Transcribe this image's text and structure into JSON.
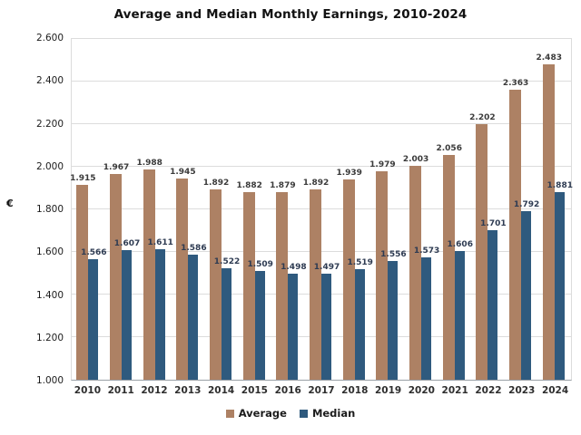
{
  "title": "Average and Median Monthly Earnings, 2010-2024",
  "y_axis_unit": "€",
  "colors": {
    "average_bar": "#ad8164",
    "median_bar": "#2f5a7e",
    "gridline": "#dcdcdc",
    "axis_line": "#9aa0a6",
    "average_label_text": "#3a3a3a",
    "median_label_text": "#2e3b52"
  },
  "legend": {
    "average_label": "Average",
    "median_label": "Median"
  },
  "chart_data": {
    "type": "bar",
    "title": "Average and Median Monthly Earnings, 2010-2024",
    "categories": [
      "2010",
      "2011",
      "2012",
      "2013",
      "2014",
      "2015",
      "2016",
      "2017",
      "2018",
      "2019",
      "2020",
      "2021",
      "2022",
      "2023",
      "2024"
    ],
    "series": [
      {
        "name": "Average",
        "color": "#ad8164",
        "values": [
          1915,
          1967,
          1988,
          1945,
          1892,
          1882,
          1879,
          1892,
          1939,
          1979,
          2003,
          2056,
          2202,
          2363,
          2483
        ],
        "labels": [
          "1.915",
          "1.967",
          "1.988",
          "1.945",
          "1.892",
          "1.882",
          "1.879",
          "1.892",
          "1.939",
          "1.979",
          "2.003",
          "2.056",
          "2.202",
          "2.363",
          "2.483"
        ]
      },
      {
        "name": "Median",
        "color": "#2f5a7e",
        "values": [
          1566,
          1607,
          1611,
          1586,
          1522,
          1509,
          1498,
          1497,
          1519,
          1556,
          1573,
          1606,
          1701,
          1792,
          1881
        ],
        "labels": [
          "1.566",
          "1.607",
          "1.611",
          "1.586",
          "1.522",
          "1.509",
          "1.498",
          "1.497",
          "1.519",
          "1.556",
          "1.573",
          "1.606",
          "1.701",
          "1.792",
          "1.881"
        ]
      }
    ],
    "xlabel": "",
    "ylabel": "€",
    "ylim": [
      1000,
      2600
    ],
    "ytick_step": 200,
    "yticks": [
      "1.000",
      "1.200",
      "1.400",
      "1.600",
      "1.800",
      "2.000",
      "2.200",
      "2.400",
      "2.600"
    ],
    "grid": true,
    "legend_position": "bottom"
  }
}
